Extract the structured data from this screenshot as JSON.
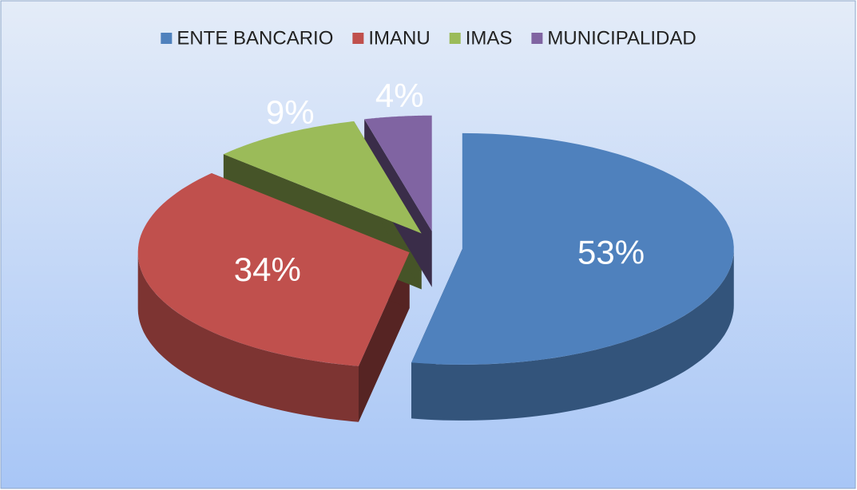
{
  "chart_data": {
    "type": "pie",
    "categories": [
      "ENTE BANCARIO",
      "IMANU",
      "IMAS",
      "MUNICIPALIDAD"
    ],
    "values": [
      53,
      34,
      9,
      4
    ],
    "value_labels": [
      "53%",
      "34%",
      "9%",
      "4%"
    ],
    "colors": [
      "#4f81bd",
      "#c0504d",
      "#9bbb59",
      "#8064a2"
    ],
    "legend": "top"
  }
}
